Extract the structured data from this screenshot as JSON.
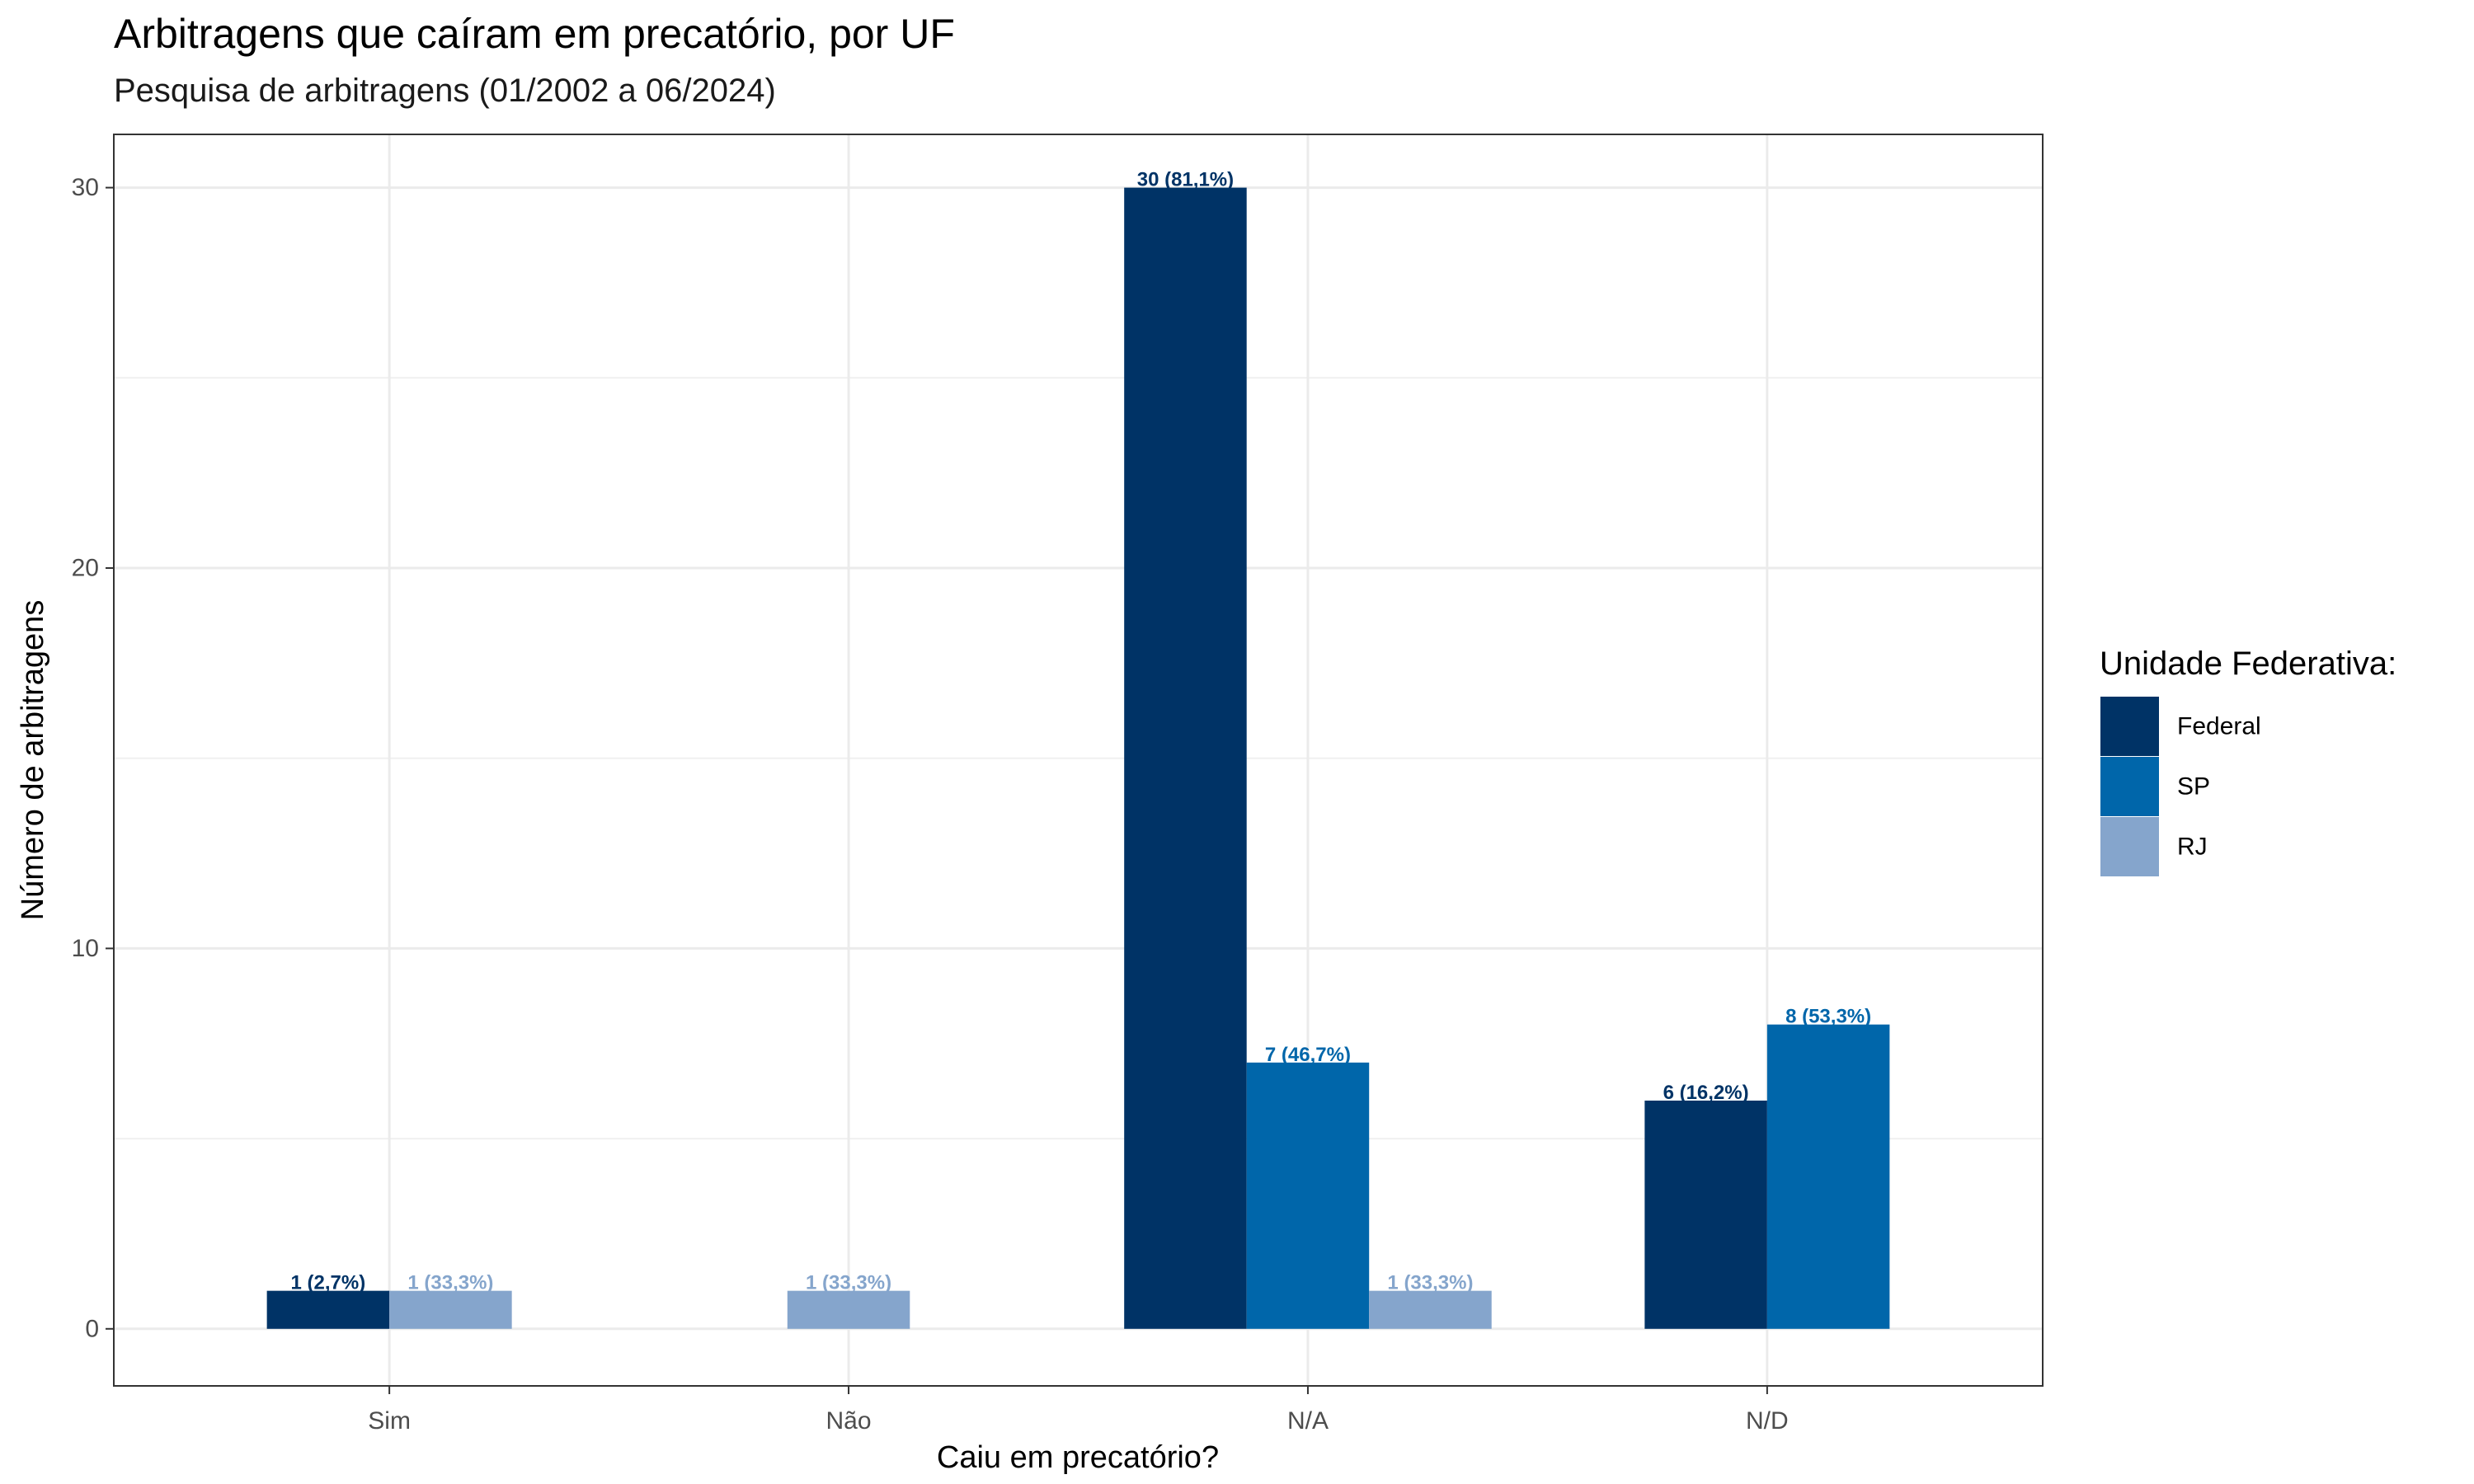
{
  "title": "Arbitragens que caíram em precatório, por UF",
  "subtitle": "Pesquisa de arbitragens (01/2002 a 06/2024)",
  "chart_data": {
    "type": "bar",
    "categories": [
      "Sim",
      "Não",
      "N/A",
      "N/D"
    ],
    "series": [
      {
        "name": "Federal",
        "color": "#003366",
        "values": [
          1,
          null,
          30,
          6
        ],
        "labels": [
          "1 (2,7%)",
          null,
          "30 (81,1%)",
          "6 (16,2%)"
        ]
      },
      {
        "name": "SP",
        "color": "#0066AA",
        "values": [
          null,
          null,
          7,
          8
        ],
        "labels": [
          null,
          null,
          "7 (46,7%)",
          "8 (53,3%)"
        ]
      },
      {
        "name": "RJ",
        "color": "#85A5CC",
        "values": [
          1,
          1,
          1,
          null
        ],
        "labels": [
          "1 (33,3%)",
          "1 (33,3%)",
          "1 (33,3%)",
          null
        ]
      }
    ],
    "xlabel": "Caiu em precatório?",
    "ylabel": "Número de arbitragens",
    "yticks": [
      0,
      10,
      20,
      30
    ],
    "ylim": [
      -1.5,
      31.4
    ],
    "grid": true,
    "legend": {
      "title": "Unidade Federativa:",
      "position": "right"
    }
  }
}
